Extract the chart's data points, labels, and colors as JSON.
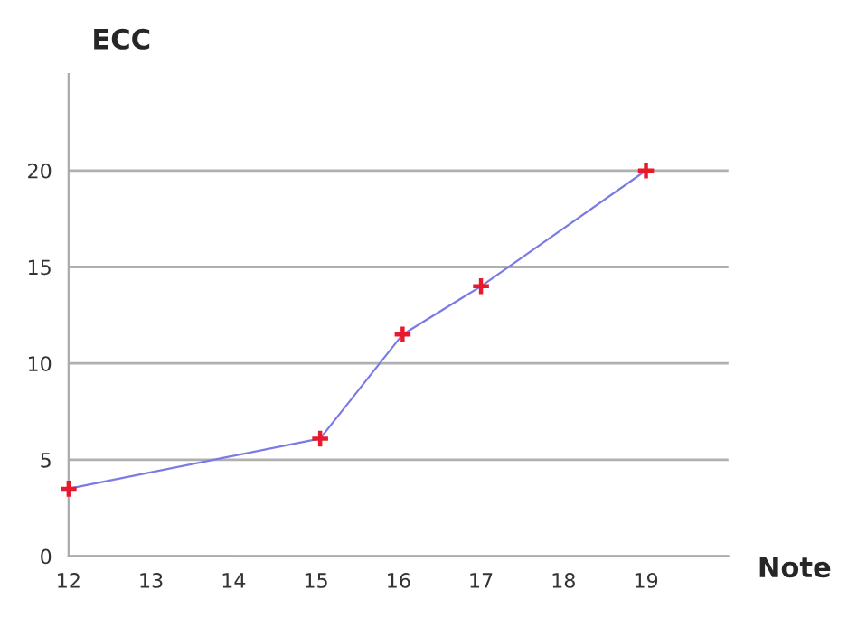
{
  "chart_data": {
    "type": "line",
    "xlabel": "Note",
    "ylabel": "ECC",
    "x": [
      12,
      15.05,
      16.05,
      17,
      19
    ],
    "series": [
      {
        "color": "#7b7be6",
        "colors": [
          "#e8192c",
          "#e8192c",
          "#e8192c",
          "#e8192c",
          "#e8192c"
        ],
        "values": [
          3.5,
          6.1,
          11.5,
          14,
          20
        ]
      }
    ],
    "xlim": [
      12,
      20
    ],
    "ylim": [
      0,
      25
    ],
    "xticks": [
      12,
      13,
      14,
      15,
      16,
      17,
      18,
      19
    ],
    "yticks": [
      0,
      5,
      10,
      15,
      20
    ],
    "grid": "y",
    "marker": "cross",
    "line_style": "solid"
  }
}
